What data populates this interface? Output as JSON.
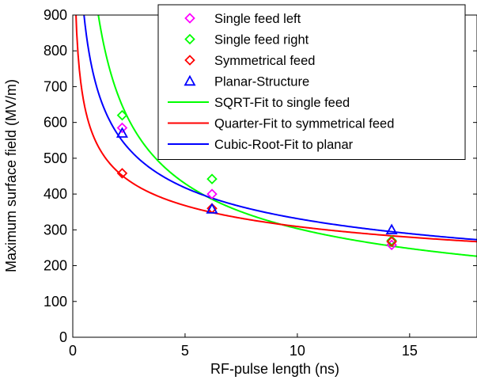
{
  "chart_data": {
    "type": "line",
    "title": "",
    "xlabel": "RF-pulse length (ns)",
    "ylabel": "Maximum surface field (MV/m)",
    "xlim": [
      0,
      18
    ],
    "ylim": [
      0,
      900
    ],
    "xticks": [
      0,
      5,
      10,
      15
    ],
    "yticks": [
      0,
      100,
      200,
      300,
      400,
      500,
      600,
      700,
      800,
      900
    ],
    "grid": false,
    "legend_position": "top-right",
    "scatter_series": [
      {
        "name": "Single feed left",
        "marker": "diamond",
        "color": "#ff00ff",
        "points": [
          [
            2.2,
            585
          ],
          [
            6.2,
            400
          ],
          [
            14.2,
            258
          ]
        ]
      },
      {
        "name": "Single feed right",
        "marker": "diamond",
        "color": "#00ff00",
        "points": [
          [
            2.2,
            620
          ],
          [
            6.2,
            442
          ],
          [
            14.2,
            270
          ]
        ]
      },
      {
        "name": "Symmetrical feed",
        "marker": "diamond",
        "color": "#ff0000",
        "points": [
          [
            2.2,
            458
          ],
          [
            6.2,
            360
          ],
          [
            14.2,
            267
          ]
        ]
      },
      {
        "name": "Planar-Structure",
        "marker": "triangle",
        "color": "#0000ff",
        "points": [
          [
            2.2,
            570
          ],
          [
            6.2,
            358
          ],
          [
            14.2,
            300
          ]
        ]
      }
    ],
    "fit_series": [
      {
        "name": "SQRT-Fit to single feed",
        "color": "#00ff00",
        "a": 960,
        "p": 0.5
      },
      {
        "name": "Quarter-Fit to symmetrical feed",
        "color": "#ff0000",
        "a": 550,
        "p": 0.25
      },
      {
        "name": "Cubic-Root-Fit to planar",
        "color": "#0000ff",
        "a": 714,
        "p": 0.3333333
      }
    ]
  }
}
